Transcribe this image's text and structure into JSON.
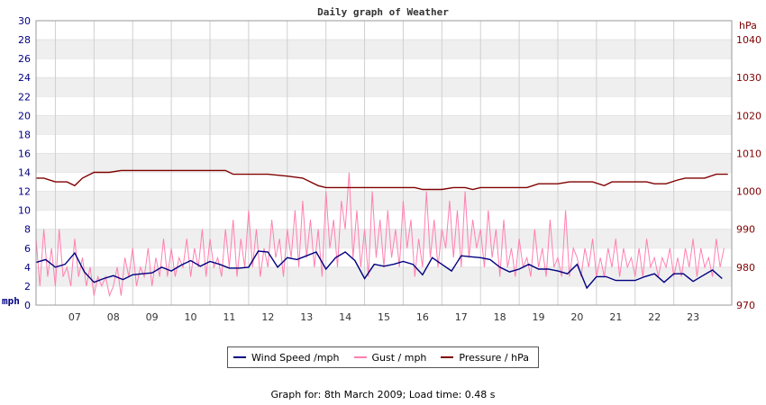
{
  "chart_data": {
    "type": "line",
    "title": "Daily graph of Weather",
    "x": {
      "ticks": [
        "07",
        "08",
        "09",
        "10",
        "11",
        "12",
        "13",
        "14",
        "15",
        "16",
        "17",
        "18",
        "19",
        "20",
        "21",
        "22",
        "23"
      ],
      "tick_values": [
        7,
        8,
        9,
        10,
        11,
        12,
        13,
        14,
        15,
        16,
        17,
        18,
        19,
        20,
        21,
        22,
        23
      ],
      "range": [
        6,
        24
      ]
    },
    "y_left": {
      "label": "mph",
      "range": [
        0,
        30
      ],
      "ticks": [
        "0",
        "2",
        "4",
        "6",
        "8",
        "10",
        "12",
        "14",
        "16",
        "18",
        "20",
        "22",
        "24",
        "26",
        "28",
        "30"
      ]
    },
    "y_right": {
      "label": "hPa",
      "range": [
        970,
        1045
      ],
      "ticks": [
        "970",
        "980",
        "990",
        "1000",
        "1010",
        "1020",
        "1030",
        "1040"
      ]
    },
    "grid": true,
    "series": [
      {
        "name": "Wind Speed /mph",
        "axis": "left",
        "color": "#000080",
        "x": [
          6.0,
          6.25,
          6.5,
          6.75,
          7.0,
          7.25,
          7.5,
          7.75,
          8.0,
          8.25,
          8.5,
          8.75,
          9.0,
          9.25,
          9.5,
          9.75,
          10.0,
          10.25,
          10.5,
          10.75,
          11.0,
          11.25,
          11.5,
          11.75,
          12.0,
          12.25,
          12.5,
          12.75,
          13.0,
          13.25,
          13.5,
          13.75,
          14.0,
          14.25,
          14.5,
          14.75,
          15.0,
          15.25,
          15.5,
          15.75,
          16.0,
          16.25,
          16.5,
          16.75,
          17.0,
          17.25,
          17.5,
          17.75,
          18.0,
          18.25,
          18.5,
          18.75,
          19.0,
          19.25,
          19.5,
          19.75,
          20.0,
          20.25,
          20.5,
          20.75,
          21.0,
          21.25,
          21.5,
          21.75,
          22.0,
          22.25,
          22.5,
          22.75,
          23.0,
          23.25,
          23.5,
          23.75
        ],
        "y": [
          4.5,
          4.8,
          4.0,
          4.3,
          5.5,
          3.5,
          2.4,
          2.8,
          3.1,
          2.7,
          3.2,
          3.3,
          3.4,
          4.0,
          3.6,
          4.2,
          4.7,
          4.1,
          4.6,
          4.3,
          3.9,
          3.9,
          4.0,
          5.7,
          5.6,
          4.0,
          5.0,
          4.8,
          5.2,
          5.6,
          3.8,
          5.0,
          5.6,
          4.7,
          2.8,
          4.3,
          4.1,
          4.3,
          4.6,
          4.3,
          3.2,
          5.0,
          4.3,
          3.6,
          5.2,
          5.1,
          5.0,
          4.8,
          4.0,
          3.5,
          3.8,
          4.3,
          3.8,
          3.8,
          3.6,
          3.3,
          4.3,
          1.8,
          3.0,
          3.0,
          2.6,
          2.6,
          2.6,
          3.0,
          3.3,
          2.4,
          3.3,
          3.3,
          2.5,
          3.1,
          3.7,
          2.8
        ]
      },
      {
        "name": "Gust / mph",
        "axis": "left",
        "color": "#ff80b0",
        "x": [
          6.0,
          6.1,
          6.2,
          6.3,
          6.4,
          6.5,
          6.6,
          6.7,
          6.8,
          6.9,
          7.0,
          7.1,
          7.2,
          7.3,
          7.4,
          7.5,
          7.6,
          7.7,
          7.8,
          7.9,
          8.0,
          8.1,
          8.2,
          8.3,
          8.4,
          8.5,
          8.6,
          8.7,
          8.8,
          8.9,
          9.0,
          9.1,
          9.2,
          9.3,
          9.4,
          9.5,
          9.6,
          9.7,
          9.8,
          9.9,
          10.0,
          10.1,
          10.2,
          10.3,
          10.4,
          10.5,
          10.6,
          10.7,
          10.8,
          10.9,
          11.0,
          11.1,
          11.2,
          11.3,
          11.4,
          11.5,
          11.6,
          11.7,
          11.8,
          11.9,
          12.0,
          12.1,
          12.2,
          12.3,
          12.4,
          12.5,
          12.6,
          12.7,
          12.8,
          12.9,
          13.0,
          13.1,
          13.2,
          13.3,
          13.4,
          13.5,
          13.6,
          13.7,
          13.8,
          13.9,
          14.0,
          14.1,
          14.2,
          14.3,
          14.4,
          14.5,
          14.6,
          14.7,
          14.8,
          14.9,
          15.0,
          15.1,
          15.2,
          15.3,
          15.4,
          15.5,
          15.6,
          15.7,
          15.8,
          15.9,
          16.0,
          16.1,
          16.2,
          16.3,
          16.4,
          16.5,
          16.6,
          16.7,
          16.8,
          16.9,
          17.0,
          17.1,
          17.2,
          17.3,
          17.4,
          17.5,
          17.6,
          17.7,
          17.8,
          17.9,
          18.0,
          18.1,
          18.2,
          18.3,
          18.4,
          18.5,
          18.6,
          18.7,
          18.8,
          18.9,
          19.0,
          19.1,
          19.2,
          19.3,
          19.4,
          19.5,
          19.6,
          19.7,
          19.8,
          19.9,
          20.0,
          20.1,
          20.2,
          20.3,
          20.4,
          20.5,
          20.6,
          20.7,
          20.8,
          20.9,
          21.0,
          21.1,
          21.2,
          21.3,
          21.4,
          21.5,
          21.6,
          21.7,
          21.8,
          21.9,
          22.0,
          22.1,
          22.2,
          22.3,
          22.4,
          22.5,
          22.6,
          22.7,
          22.8,
          22.9,
          23.0,
          23.1,
          23.2,
          23.3,
          23.4,
          23.5,
          23.6,
          23.7,
          23.8
        ],
        "y": [
          7,
          2,
          8,
          3,
          6,
          2,
          8,
          3,
          4,
          2,
          7,
          3,
          5,
          2,
          4,
          1,
          3,
          2,
          3,
          1,
          2,
          4,
          1,
          5,
          3,
          6,
          2,
          4,
          3,
          6,
          2,
          5,
          3,
          7,
          3,
          6,
          3,
          5,
          4,
          7,
          3,
          6,
          4,
          8,
          3,
          7,
          4,
          5,
          3,
          8,
          4,
          9,
          3,
          7,
          4,
          10,
          4,
          8,
          3,
          6,
          4,
          9,
          5,
          7,
          3,
          8,
          5,
          10,
          4,
          11,
          5,
          9,
          4,
          8,
          3,
          12,
          6,
          9,
          4,
          11,
          8,
          14,
          5,
          10,
          4,
          8,
          3,
          12,
          5,
          9,
          4,
          10,
          5,
          8,
          4,
          11,
          6,
          9,
          3,
          7,
          4,
          12,
          5,
          9,
          4,
          8,
          6,
          11,
          5,
          10,
          4,
          12,
          5,
          9,
          6,
          8,
          4,
          10,
          5,
          8,
          3,
          9,
          4,
          6,
          3,
          7,
          4,
          5,
          3,
          8,
          4,
          6,
          3,
          9,
          4,
          5,
          3,
          10,
          3,
          6,
          5,
          3,
          6,
          4,
          7,
          3,
          5,
          3,
          6,
          4,
          7,
          3,
          6,
          4,
          5,
          3,
          6,
          3,
          7,
          4,
          5,
          3,
          5,
          4,
          6,
          3,
          5,
          3,
          6,
          4,
          7,
          3,
          6,
          4,
          5,
          3,
          7,
          4,
          6
        ]
      },
      {
        "name": "Pressure / hPa",
        "axis": "right",
        "color": "#800000",
        "x": [
          6.0,
          6.2,
          6.5,
          6.8,
          7.0,
          7.2,
          7.5,
          7.9,
          8.2,
          8.5,
          9.0,
          9.5,
          10.0,
          10.5,
          10.9,
          11.1,
          11.5,
          12.0,
          12.5,
          12.9,
          13.1,
          13.3,
          13.5,
          14.0,
          14.5,
          15.0,
          15.5,
          15.8,
          16.0,
          16.5,
          16.8,
          17.1,
          17.3,
          17.5,
          17.9,
          18.3,
          18.7,
          19.0,
          19.5,
          19.8,
          20.0,
          20.4,
          20.7,
          20.9,
          21.2,
          21.5,
          21.8,
          22.0,
          22.3,
          22.6,
          22.8,
          23.0,
          23.3,
          23.6,
          23.9
        ],
        "y": [
          1003.5,
          1003.5,
          1002.5,
          1002.5,
          1001.5,
          1003.5,
          1005,
          1005,
          1005.5,
          1005.5,
          1005.5,
          1005.5,
          1005.5,
          1005.5,
          1005.5,
          1004.5,
          1004.5,
          1004.5,
          1004,
          1003.5,
          1002.5,
          1001.5,
          1001,
          1001,
          1001,
          1001,
          1001,
          1001,
          1000.5,
          1000.5,
          1001,
          1001,
          1000.5,
          1001,
          1001,
          1001,
          1001,
          1002,
          1002,
          1002.5,
          1002.5,
          1002.5,
          1001.5,
          1002.5,
          1002.5,
          1002.5,
          1002.5,
          1002,
          1002,
          1003,
          1003.5,
          1003.5,
          1003.5,
          1004.5,
          1004.5
        ]
      }
    ],
    "legend": [
      "Wind Speed /mph",
      "Gust / mph",
      "Pressure / hPa"
    ],
    "legend_placement": "bottom-center",
    "footer": "Graph for: 8th March 2009; Load time: 0.48 s"
  }
}
